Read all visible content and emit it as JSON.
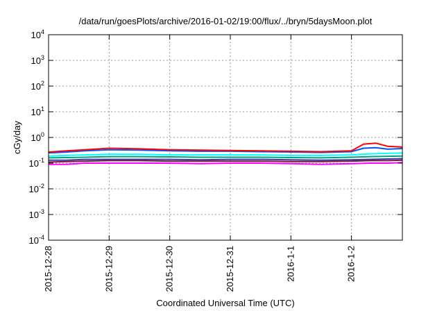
{
  "chart_data": {
    "type": "line",
    "title": "/data/run/goesPlots/archive/2016-01-02/19:00/flux/../bryn/5daysMoon.plot",
    "xlabel": "Coordinated Universal Time (UTC)",
    "ylabel": "cGy/day",
    "yscale": "log",
    "ylim": [
      0.0001,
      10000
    ],
    "xlim": [
      0,
      5.84
    ],
    "grid": true,
    "legend": "none",
    "y_ticks": [
      {
        "value": 0.0001,
        "base": "10",
        "exp": "-4"
      },
      {
        "value": 0.001,
        "base": "10",
        "exp": "-3"
      },
      {
        "value": 0.01,
        "base": "10",
        "exp": "-2"
      },
      {
        "value": 0.1,
        "base": "10",
        "exp": "-1"
      },
      {
        "value": 1,
        "base": "10",
        "exp": "0"
      },
      {
        "value": 10,
        "base": "10",
        "exp": "1"
      },
      {
        "value": 100,
        "base": "10",
        "exp": "2"
      },
      {
        "value": 1000,
        "base": "10",
        "exp": "3"
      },
      {
        "value": 10000,
        "base": "10",
        "exp": "4"
      }
    ],
    "x_ticks": [
      {
        "value": 0,
        "label": "2015-12-28"
      },
      {
        "value": 1,
        "label": "2015-12-29"
      },
      {
        "value": 2,
        "label": "2015-12-30"
      },
      {
        "value": 3,
        "label": "2015-12-31"
      },
      {
        "value": 4,
        "label": "2016-1-1"
      },
      {
        "value": 5,
        "label": "2016-1-2"
      }
    ],
    "series": [
      {
        "color": "#ff00ff",
        "x": [
          0.0,
          0.3,
          0.6,
          1.0,
          1.5,
          2.0,
          2.5,
          3.0,
          3.5,
          4.0,
          4.5,
          5.0,
          5.3,
          5.6,
          5.84
        ],
        "values": [
          0.09,
          0.09,
          0.1,
          0.1,
          0.1,
          0.1,
          0.095,
          0.1,
          0.1,
          0.095,
          0.09,
          0.095,
          0.1,
          0.1,
          0.105
        ]
      },
      {
        "color": "#7b1a3a",
        "x": [
          0.0,
          0.3,
          0.6,
          1.0,
          1.5,
          2.0,
          2.5,
          3.0,
          3.5,
          4.0,
          4.5,
          5.0,
          5.3,
          5.6,
          5.84
        ],
        "values": [
          0.11,
          0.115,
          0.12,
          0.125,
          0.125,
          0.12,
          0.12,
          0.12,
          0.12,
          0.115,
          0.115,
          0.12,
          0.125,
          0.125,
          0.13
        ]
      },
      {
        "color": "#3a3aa0",
        "x": [
          0.0,
          0.3,
          0.6,
          1.0,
          1.5,
          2.0,
          2.5,
          3.0,
          3.5,
          4.0,
          4.5,
          5.0,
          5.3,
          5.6,
          5.84
        ],
        "values": [
          0.13,
          0.13,
          0.14,
          0.14,
          0.14,
          0.14,
          0.135,
          0.14,
          0.14,
          0.135,
          0.13,
          0.135,
          0.14,
          0.145,
          0.15
        ]
      },
      {
        "color": "#00a080",
        "x": [
          0.0,
          0.3,
          0.6,
          1.0,
          1.5,
          2.0,
          2.5,
          3.0,
          3.5,
          4.0,
          4.5,
          5.0,
          5.3,
          5.6,
          5.84
        ],
        "values": [
          0.16,
          0.165,
          0.17,
          0.18,
          0.18,
          0.175,
          0.17,
          0.17,
          0.17,
          0.165,
          0.16,
          0.17,
          0.18,
          0.185,
          0.19
        ]
      },
      {
        "color": "#00ffff",
        "x": [
          0.0,
          0.3,
          0.6,
          1.0,
          1.5,
          2.0,
          2.5,
          3.0,
          3.5,
          4.0,
          4.5,
          5.0,
          5.3,
          5.6,
          5.84
        ],
        "values": [
          0.19,
          0.2,
          0.21,
          0.22,
          0.22,
          0.21,
          0.21,
          0.21,
          0.21,
          0.2,
          0.2,
          0.21,
          0.23,
          0.24,
          0.25
        ]
      },
      {
        "color": "#0055ff",
        "x": [
          0.0,
          0.3,
          0.6,
          1.0,
          1.5,
          2.0,
          2.5,
          3.0,
          3.5,
          4.0,
          4.5,
          5.0,
          5.2,
          5.4,
          5.6,
          5.84
        ],
        "values": [
          0.25,
          0.27,
          0.3,
          0.33,
          0.32,
          0.3,
          0.29,
          0.29,
          0.28,
          0.27,
          0.26,
          0.28,
          0.38,
          0.4,
          0.35,
          0.37
        ]
      },
      {
        "color": "#ff0000",
        "x": [
          0.0,
          0.3,
          0.6,
          1.0,
          1.5,
          2.0,
          2.5,
          3.0,
          3.5,
          4.0,
          4.5,
          5.0,
          5.2,
          5.4,
          5.6,
          5.84
        ],
        "values": [
          0.27,
          0.3,
          0.33,
          0.38,
          0.36,
          0.33,
          0.32,
          0.31,
          0.3,
          0.29,
          0.28,
          0.3,
          0.55,
          0.6,
          0.45,
          0.42
        ]
      }
    ]
  }
}
